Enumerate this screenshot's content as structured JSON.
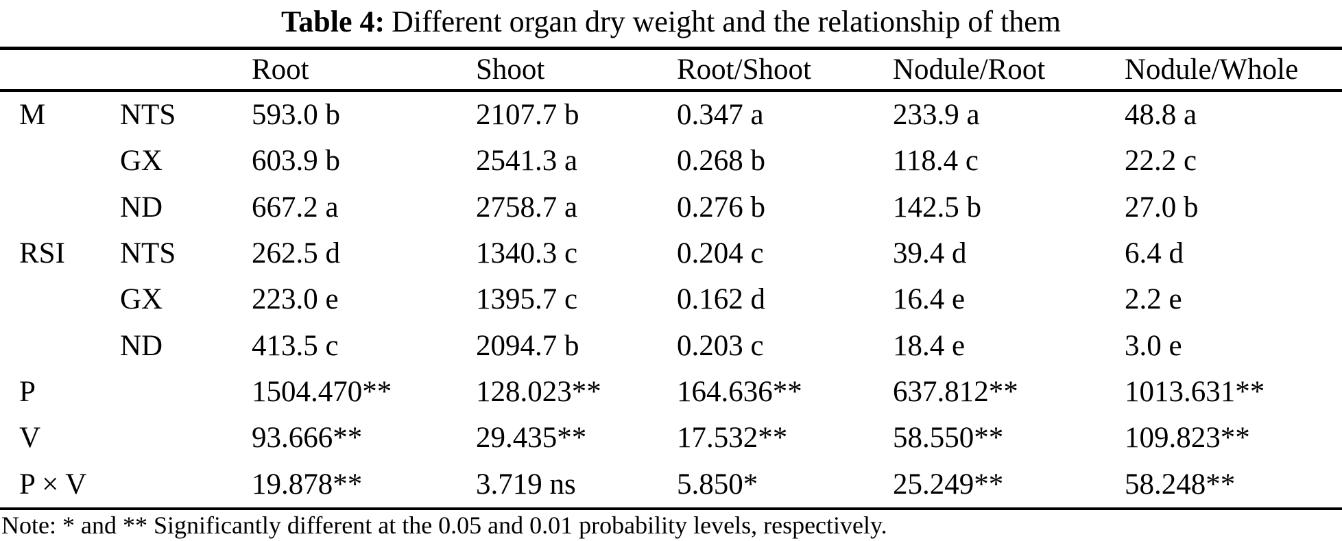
{
  "title": {
    "label": "Table 4:",
    "text": "Different organ dry weight and the relationship of them"
  },
  "table": {
    "columns": [
      "",
      "",
      "Root",
      "Shoot",
      "Root/Shoot",
      "Nodule/Root",
      "Nodule/Whole"
    ],
    "rows": [
      {
        "factor": "M",
        "variety": "NTS",
        "values": [
          "593.0 b",
          "2107.7 b",
          "0.347 a",
          "233.9 a",
          "48.8 a"
        ]
      },
      {
        "factor": "",
        "variety": "GX",
        "values": [
          "603.9 b",
          "2541.3 a",
          "0.268 b",
          "118.4 c",
          "22.2 c"
        ]
      },
      {
        "factor": "",
        "variety": "ND",
        "values": [
          "667.2 a",
          "2758.7 a",
          "0.276 b",
          "142.5 b",
          "27.0 b"
        ]
      },
      {
        "factor": "RSI",
        "variety": "NTS",
        "values": [
          "262.5 d",
          "1340.3 c",
          "0.204 c",
          "39.4 d",
          "6.4 d"
        ]
      },
      {
        "factor": "",
        "variety": "GX",
        "values": [
          "223.0 e",
          "1395.7 c",
          "0.162 d",
          "16.4 e",
          "2.2 e"
        ]
      },
      {
        "factor": "",
        "variety": "ND",
        "values": [
          "413.5 c",
          "2094.7 b",
          "0.203 c",
          "18.4 e",
          "3.0 e"
        ]
      },
      {
        "factor": "P",
        "variety": "",
        "values": [
          "1504.470**",
          "128.023**",
          "164.636**",
          "637.812**",
          "1013.631**"
        ]
      },
      {
        "factor": "V",
        "variety": "",
        "values": [
          "93.666**",
          "29.435**",
          "17.532**",
          "58.550**",
          "109.823**"
        ]
      },
      {
        "factor": "P × V",
        "variety": "",
        "values": [
          "19.878**",
          "3.719 ns",
          "5.850*",
          "25.249**",
          "58.248**"
        ]
      }
    ]
  },
  "note": "Note: * and ** Significantly different at the 0.05 and 0.01 probability levels, respectively."
}
